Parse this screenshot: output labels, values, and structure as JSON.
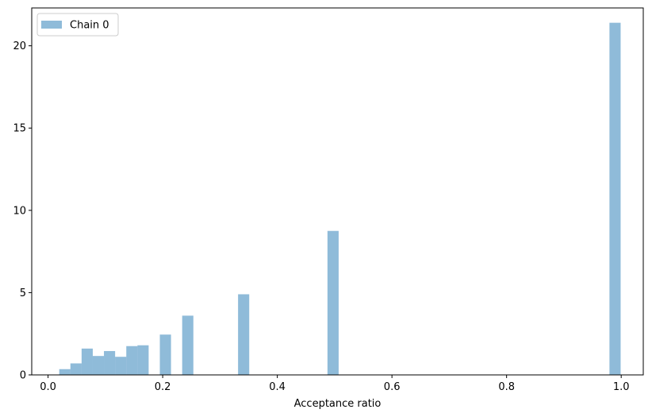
{
  "chart_data": {
    "type": "bar",
    "subtype": "histogram",
    "title": "",
    "xlabel": "Acceptance ratio",
    "ylabel": "",
    "xlim": [
      -0.0285,
      1.0385
    ],
    "ylim": [
      0,
      22.3
    ],
    "xticks": [
      0.0,
      0.2,
      0.4,
      0.6,
      0.8,
      1.0
    ],
    "xtick_labels": [
      "0.0",
      "0.2",
      "0.4",
      "0.6",
      "0.8",
      "1.0"
    ],
    "yticks": [
      0,
      5,
      10,
      15,
      20
    ],
    "ytick_labels": [
      "0",
      "5",
      "10",
      "15",
      "20"
    ],
    "bin_width": 0.0195,
    "grid": false,
    "legend": {
      "placement": "top-left"
    },
    "series": [
      {
        "name": "Chain 0",
        "color": "#1f77b4",
        "alpha": 0.5,
        "bins": [
          {
            "x0": 0.0195,
            "x1": 0.039,
            "value": 0.35
          },
          {
            "x0": 0.039,
            "x1": 0.0585,
            "value": 0.7
          },
          {
            "x0": 0.0585,
            "x1": 0.078,
            "value": 1.6
          },
          {
            "x0": 0.078,
            "x1": 0.0975,
            "value": 1.15
          },
          {
            "x0": 0.0975,
            "x1": 0.117,
            "value": 1.45
          },
          {
            "x0": 0.117,
            "x1": 0.1365,
            "value": 1.1
          },
          {
            "x0": 0.1365,
            "x1": 0.156,
            "value": 1.75
          },
          {
            "x0": 0.156,
            "x1": 0.1755,
            "value": 1.8
          },
          {
            "x0": 0.195,
            "x1": 0.2145,
            "value": 2.45
          },
          {
            "x0": 0.234,
            "x1": 0.2535,
            "value": 3.6
          },
          {
            "x0": 0.3315,
            "x1": 0.351,
            "value": 4.9
          },
          {
            "x0": 0.4875,
            "x1": 0.507,
            "value": 8.75
          },
          {
            "x0": 0.9795,
            "x1": 0.999,
            "value": 21.4
          }
        ]
      }
    ]
  }
}
